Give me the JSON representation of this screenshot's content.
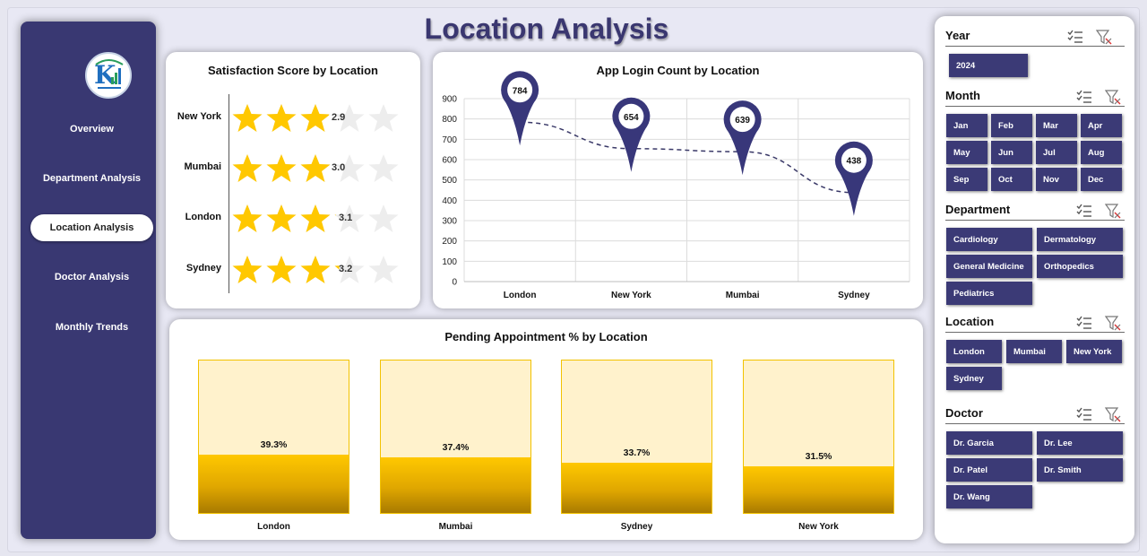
{
  "title": "Location Analysis",
  "nav": [
    {
      "label": "Overview",
      "active": false
    },
    {
      "label": "Department Analysis",
      "active": false
    },
    {
      "label": "Location Analysis",
      "active": true
    },
    {
      "label": "Doctor Analysis",
      "active": false
    },
    {
      "label": "Monthly Trends",
      "active": false
    }
  ],
  "colors": {
    "navy": "#393872",
    "gold": "#ffc800",
    "star_empty": "#ededed"
  },
  "satisfaction": {
    "title": "Satisfaction Score by Location",
    "max_stars": 5,
    "rows": [
      {
        "location": "New York",
        "score": 2.9,
        "score_label": "2.9"
      },
      {
        "location": "Mumbai",
        "score": 3.0,
        "score_label": "3.0"
      },
      {
        "location": "London",
        "score": 3.1,
        "score_label": "3.1"
      },
      {
        "location": "Sydney",
        "score": 3.2,
        "score_label": "3.2"
      }
    ]
  },
  "chart_data": [
    {
      "type": "line",
      "title": "App Login Count by Location",
      "categories": [
        "London",
        "New York",
        "Mumbai",
        "Sydney"
      ],
      "values": [
        784,
        654,
        639,
        438
      ],
      "value_labels": [
        "784",
        "654",
        "639",
        "438"
      ],
      "yticks": [
        "0",
        "100",
        "200",
        "300",
        "400",
        "500",
        "600",
        "700",
        "800",
        "900"
      ],
      "ylim": [
        0,
        900
      ],
      "grid": true
    },
    {
      "type": "bar",
      "title": "Pending Appointment % by Location",
      "categories": [
        "London",
        "Mumbai",
        "Sydney",
        "New York"
      ],
      "values": [
        39.3,
        37.4,
        33.7,
        31.5
      ],
      "value_labels": [
        "39.3%",
        "37.4%",
        "33.7%",
        "31.5%"
      ],
      "ylim": [
        0,
        100
      ]
    }
  ],
  "filters": {
    "year": {
      "label": "Year",
      "options": [
        "2024"
      ]
    },
    "month": {
      "label": "Month",
      "options": [
        "Jan",
        "Feb",
        "Mar",
        "Apr",
        "May",
        "Jun",
        "Jul",
        "Aug",
        "Sep",
        "Oct",
        "Nov",
        "Dec"
      ]
    },
    "department": {
      "label": "Department",
      "options": [
        "Cardiology",
        "Dermatology",
        "General Medicine",
        "Orthopedics",
        "Pediatrics"
      ]
    },
    "location": {
      "label": "Location",
      "options": [
        "London",
        "Mumbai",
        "New York",
        "Sydney"
      ]
    },
    "doctor": {
      "label": "Doctor",
      "options": [
        "Dr. Garcia",
        "Dr. Lee",
        "Dr. Patel",
        "Dr. Smith",
        "Dr. Wang"
      ]
    },
    "icons": {
      "multi_select": "multi-select-icon",
      "clear_filter": "clear-filter-icon"
    }
  }
}
